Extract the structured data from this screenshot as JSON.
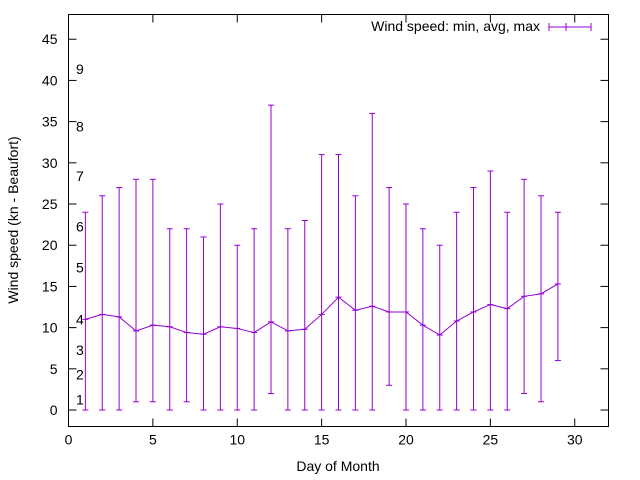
{
  "chart_data": {
    "type": "line",
    "title": "",
    "xlabel": "Day of Month",
    "ylabel": "Wind speed (kn - Beaufort)",
    "xlim": [
      0,
      32
    ],
    "ylim": [
      -2,
      48
    ],
    "x_ticks": [
      0,
      5,
      10,
      15,
      20,
      25,
      30
    ],
    "y_ticks": [
      0,
      5,
      10,
      15,
      20,
      25,
      30,
      35,
      40,
      45
    ],
    "grid": false,
    "legend_position": "top-right",
    "series": [
      {
        "name": "Wind speed: min, avg, max",
        "color": "#9400d3",
        "style": "line with error bars",
        "points": [
          {
            "x": 1,
            "avg": 11.0,
            "min": 0,
            "max": 24
          },
          {
            "x": 2,
            "avg": 11.6,
            "min": 0,
            "max": 26
          },
          {
            "x": 3,
            "avg": 11.3,
            "min": 0,
            "max": 27
          },
          {
            "x": 4,
            "avg": 9.6,
            "min": 1,
            "max": 28
          },
          {
            "x": 5,
            "avg": 10.3,
            "min": 1,
            "max": 28
          },
          {
            "x": 6,
            "avg": 10.1,
            "min": 0,
            "max": 22
          },
          {
            "x": 7,
            "avg": 9.4,
            "min": 1,
            "max": 22
          },
          {
            "x": 8,
            "avg": 9.2,
            "min": 0,
            "max": 21
          },
          {
            "x": 9,
            "avg": 10.1,
            "min": 0,
            "max": 25
          },
          {
            "x": 10,
            "avg": 9.9,
            "min": 0,
            "max": 20
          },
          {
            "x": 11,
            "avg": 9.4,
            "min": 0,
            "max": 22
          },
          {
            "x": 12,
            "avg": 10.7,
            "min": 2,
            "max": 37
          },
          {
            "x": 13,
            "avg": 9.6,
            "min": 0,
            "max": 22
          },
          {
            "x": 14,
            "avg": 9.8,
            "min": 0,
            "max": 23
          },
          {
            "x": 15,
            "avg": 11.6,
            "min": 0,
            "max": 31
          },
          {
            "x": 16,
            "avg": 13.7,
            "min": 0,
            "max": 31
          },
          {
            "x": 17,
            "avg": 12.1,
            "min": 0,
            "max": 26
          },
          {
            "x": 18,
            "avg": 12.6,
            "min": 0,
            "max": 36
          },
          {
            "x": 19,
            "avg": 11.9,
            "min": 3,
            "max": 27
          },
          {
            "x": 20,
            "avg": 11.9,
            "min": 0,
            "max": 25
          },
          {
            "x": 21,
            "avg": 10.3,
            "min": 0,
            "max": 22
          },
          {
            "x": 22,
            "avg": 9.1,
            "min": 0,
            "max": 20
          },
          {
            "x": 23,
            "avg": 10.8,
            "min": 0,
            "max": 24
          },
          {
            "x": 24,
            "avg": 11.9,
            "min": 0,
            "max": 27
          },
          {
            "x": 25,
            "avg": 12.8,
            "min": 0,
            "max": 29
          },
          {
            "x": 26,
            "avg": 12.3,
            "min": 0,
            "max": 24
          },
          {
            "x": 27,
            "avg": 13.8,
            "min": 2,
            "max": 28
          },
          {
            "x": 28,
            "avg": 14.1,
            "min": 1,
            "max": 26
          },
          {
            "x": 29,
            "avg": 15.3,
            "min": 6,
            "max": 24
          }
        ]
      }
    ],
    "annotations": [
      {
        "text": "1",
        "y": 1.3
      },
      {
        "text": "2",
        "y": 4.3
      },
      {
        "text": "3",
        "y": 7.3
      },
      {
        "text": "4",
        "y": 11.0
      },
      {
        "text": "5",
        "y": 17.3
      },
      {
        "text": "6",
        "y": 22.3
      },
      {
        "text": "7",
        "y": 28.4
      },
      {
        "text": "8",
        "y": 34.4
      },
      {
        "text": "9",
        "y": 41.4
      }
    ]
  }
}
